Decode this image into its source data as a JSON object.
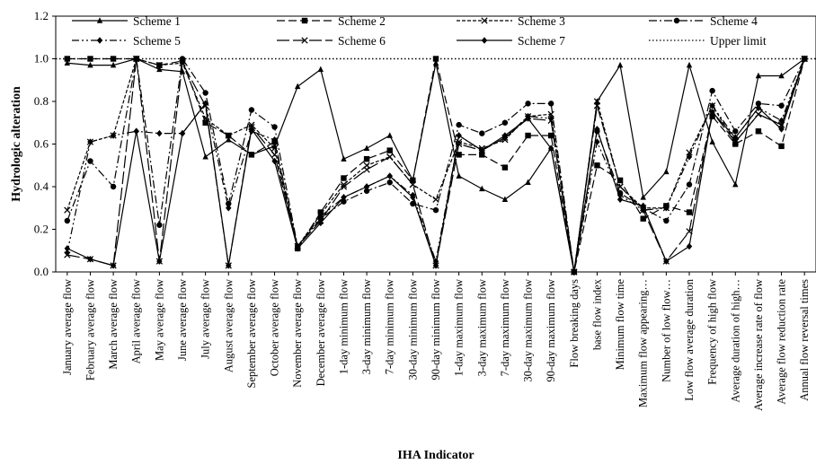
{
  "chart_data": {
    "type": "line",
    "title": "",
    "xlabel": "IHA Indicator",
    "ylabel": "Hydrologic alteration",
    "ylim": [
      0,
      1.2
    ],
    "yticks": [
      "0.0",
      "0.2",
      "0.4",
      "0.6",
      "0.8",
      "1.0",
      "1.2"
    ],
    "grid": false,
    "legend": "top",
    "categories": [
      "January average flow",
      "February average flow",
      "March average flow",
      "April average flow",
      "May average flow",
      "June average flow",
      "July average flow",
      "August average flow",
      "September average flow",
      "October average flow",
      "November average flow",
      "December average flow",
      "1-day minimum flow",
      "3-day minimum flow",
      "7-day minimum flow",
      "30-day minimum flow",
      "90-day minimum flow",
      "1-day maximum flow",
      "3-day maximum flow",
      "7-day maximum flow",
      "30-day maximum flow",
      "90-day maximum flow",
      "Flow breaking days",
      "base flow index",
      "Minimum flow time",
      "Maximum flow appearing…",
      "Number of low flow…",
      "Low flow average duration",
      "Frequency of high flow",
      "Average duration of high…",
      "Average increase rate of flow",
      "Average flow reduction rate",
      "Annual flow reversal times"
    ],
    "series": [
      {
        "name": "Scheme 1",
        "values": [
          0.98,
          0.97,
          0.97,
          1.0,
          0.95,
          0.94,
          0.54,
          0.62,
          0.55,
          0.59,
          0.87,
          0.95,
          0.53,
          0.58,
          0.64,
          0.43,
          0.98,
          0.45,
          0.39,
          0.34,
          0.42,
          0.58,
          0.0,
          0.8,
          0.97,
          0.35,
          0.47,
          0.97,
          0.61,
          0.41,
          0.92,
          0.92,
          1.0
        ]
      },
      {
        "name": "Scheme 2",
        "values": [
          1.0,
          1.0,
          1.0,
          1.0,
          0.97,
          0.99,
          0.7,
          0.64,
          0.55,
          0.61,
          0.11,
          0.28,
          0.44,
          0.53,
          0.57,
          0.43,
          1.0,
          0.55,
          0.55,
          0.49,
          0.64,
          0.64,
          0.0,
          0.5,
          0.43,
          0.25,
          0.31,
          0.28,
          0.73,
          0.6,
          0.66,
          0.59,
          1.0
        ]
      },
      {
        "name": "Scheme 3",
        "values": [
          0.29,
          0.61,
          0.64,
          1.0,
          0.97,
          0.98,
          0.72,
          0.64,
          0.69,
          0.58,
          0.12,
          0.27,
          0.41,
          0.5,
          0.54,
          0.41,
          0.34,
          0.61,
          0.58,
          0.62,
          0.73,
          0.74,
          0.0,
          0.8,
          0.4,
          0.3,
          0.3,
          0.56,
          0.78,
          0.61,
          0.74,
          0.69,
          1.0
        ]
      },
      {
        "name": "Scheme 4",
        "values": [
          0.24,
          0.52,
          0.4,
          1.0,
          0.22,
          1.0,
          0.84,
          0.32,
          0.76,
          0.68,
          0.12,
          0.25,
          0.33,
          0.38,
          0.42,
          0.32,
          0.29,
          0.69,
          0.65,
          0.7,
          0.79,
          0.79,
          0.0,
          0.66,
          0.37,
          0.3,
          0.24,
          0.41,
          0.85,
          0.66,
          0.79,
          0.78,
          1.0
        ]
      },
      {
        "name": "Scheme 5",
        "values": [
          0.09,
          0.61,
          0.64,
          0.66,
          0.65,
          0.65,
          0.79,
          0.3,
          0.66,
          0.62,
          0.12,
          0.26,
          0.35,
          0.4,
          0.45,
          0.36,
          0.05,
          0.64,
          0.57,
          0.63,
          0.73,
          0.72,
          0.0,
          0.61,
          0.36,
          0.29,
          0.3,
          0.54,
          0.78,
          0.63,
          0.77,
          0.71,
          1.0
        ]
      },
      {
        "name": "Scheme 6",
        "values": [
          0.08,
          0.06,
          0.03,
          1.0,
          0.05,
          0.98,
          0.78,
          0.03,
          0.68,
          0.55,
          0.12,
          0.24,
          0.4,
          0.48,
          0.54,
          0.41,
          0.03,
          0.6,
          0.57,
          0.63,
          0.72,
          0.71,
          0.0,
          0.78,
          0.4,
          0.29,
          0.05,
          0.19,
          0.75,
          0.61,
          0.74,
          0.69,
          1.0
        ]
      },
      {
        "name": "Scheme 7",
        "values": [
          0.11,
          0.06,
          0.03,
          0.66,
          0.05,
          0.65,
          0.79,
          0.03,
          0.67,
          0.52,
          0.11,
          0.23,
          0.35,
          0.4,
          0.45,
          0.35,
          0.03,
          0.64,
          0.57,
          0.64,
          0.72,
          0.58,
          0.0,
          0.67,
          0.34,
          0.31,
          0.05,
          0.12,
          0.75,
          0.63,
          0.77,
          0.67,
          1.0
        ]
      },
      {
        "name": "Upper limit",
        "values": [
          1,
          1,
          1,
          1,
          1,
          1,
          1,
          1,
          1,
          1,
          1,
          1,
          1,
          1,
          1,
          1,
          1,
          1,
          1,
          1,
          1,
          1,
          1,
          1,
          1,
          1,
          1,
          1,
          1,
          1,
          1,
          1,
          1
        ]
      }
    ]
  }
}
